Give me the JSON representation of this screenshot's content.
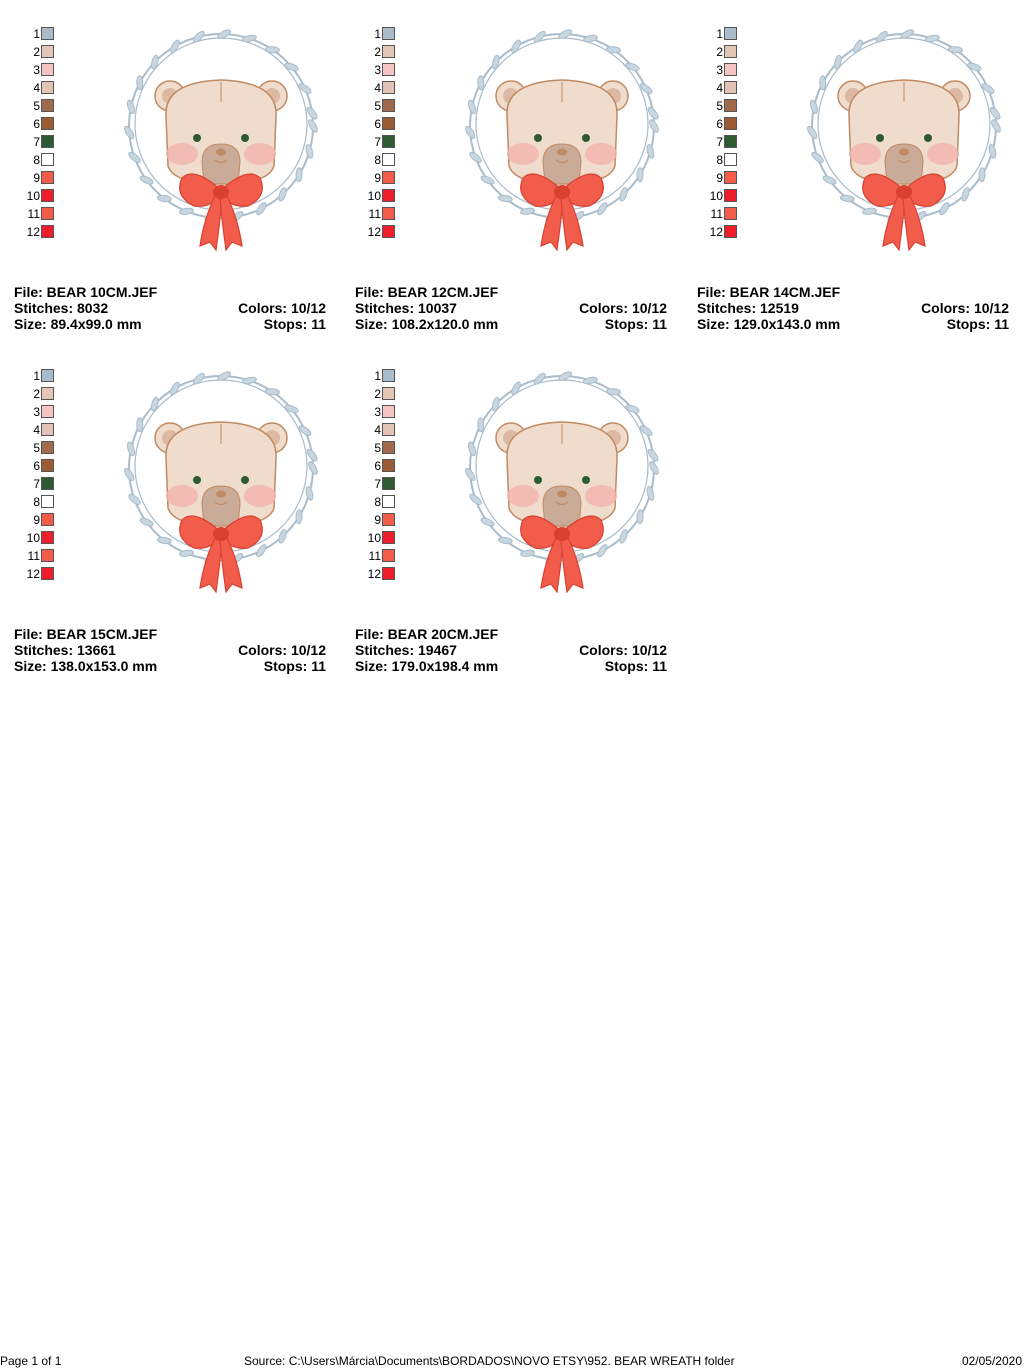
{
  "palette": {
    "numbers": [
      "1",
      "2",
      "3",
      "4",
      "5",
      "6",
      "7",
      "8",
      "9",
      "10",
      "11",
      "12"
    ],
    "colors": [
      "#a8bccb",
      "#e3c6b6",
      "#f6c4c3",
      "#e2c3b6",
      "#a06a4c",
      "#9b5b33",
      "#2d5a31",
      "#ffffff",
      "#f45c4a",
      "#ee1d2b",
      "#f25c4a",
      "#ee1d2b"
    ]
  },
  "designs": [
    {
      "file_label": "File: BEAR 10CM.JEF",
      "stitches_label": "Stitches: 8032",
      "size_label": "Size: 89.4x99.0 mm",
      "colors_label": "Colors: 10/12",
      "stops_label": "Stops: 11"
    },
    {
      "file_label": "File: BEAR 12CM.JEF",
      "stitches_label": "Stitches: 10037",
      "size_label": "Size: 108.2x120.0 mm",
      "colors_label": "Colors: 10/12",
      "stops_label": "Stops: 11"
    },
    {
      "file_label": "File: BEAR 14CM.JEF",
      "stitches_label": "Stitches: 12519",
      "size_label": "Size: 129.0x143.0 mm",
      "colors_label": "Colors: 10/12",
      "stops_label": "Stops: 11"
    },
    {
      "file_label": "File: BEAR 15CM.JEF",
      "stitches_label": "Stitches: 13661",
      "size_label": "Size: 138.0x153.0 mm",
      "colors_label": "Colors: 10/12",
      "stops_label": "Stops: 11"
    },
    {
      "file_label": "File: BEAR 20CM.JEF",
      "stitches_label": "Stitches: 19467",
      "size_label": "Size: 179.0x198.4 mm",
      "colors_label": "Colors: 10/12",
      "stops_label": "Stops: 11"
    }
  ],
  "footer": {
    "page": "Page 1 of 1",
    "source": "Source: C:\\Users\\Márcia\\Documents\\BORDADOS\\NOVO ETSY\\952. BEAR WREATH folder",
    "date": "02/05/2020"
  },
  "art_colors": {
    "wreath": "#a8bccb",
    "fur": "#efdccc",
    "fur_outline": "#c08a62",
    "ear_inner": "#dcb9a2",
    "snout": "#c9ab98",
    "cheek": "#f2b3ae",
    "eye": "#2d5a31",
    "bow": "#f25c4a",
    "bow_dark": "#d8402f"
  }
}
